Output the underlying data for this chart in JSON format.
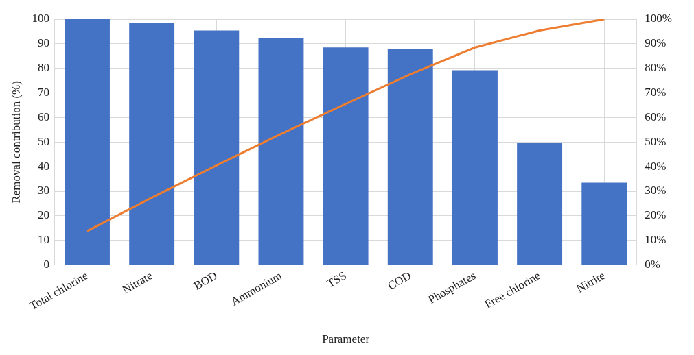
{
  "chart_data": {
    "type": "bar",
    "xlabel": "Parameter",
    "ylabel": "Removal contribution (%)",
    "categories": [
      "Total chlorine",
      "Nitrate",
      "BOD",
      "Ammonium",
      "TSS",
      "COD",
      "Phosphates",
      "Free chlorine",
      "Nitrite"
    ],
    "series": [
      {
        "color": "#4472c4",
        "values": [
          100,
          98.4,
          95.4,
          92.4,
          88.5,
          88,
          79.2,
          49.6,
          33.5
        ]
      },
      {
        "type": "line",
        "axis": "y2",
        "color": "#ed7d31",
        "marker": "none",
        "values": [
          13.8,
          27.4,
          40.5,
          53.3,
          65.5,
          77.6,
          88.5,
          95.4,
          100
        ]
      }
    ],
    "ylim": [
      0,
      100
    ],
    "yticks": [
      0,
      10,
      20,
      30,
      40,
      50,
      60,
      70,
      80,
      90,
      100
    ],
    "y2lim": [
      0,
      100
    ],
    "y2ticks": [
      {
        "value": 0,
        "label": "0%"
      },
      {
        "value": 10,
        "label": "10%"
      },
      {
        "value": 20,
        "label": "20%"
      },
      {
        "value": 30,
        "label": "30%"
      },
      {
        "value": 40,
        "label": "40%"
      },
      {
        "value": 50,
        "label": "50%"
      },
      {
        "value": 60,
        "label": "60%"
      },
      {
        "value": 70,
        "label": "70%"
      },
      {
        "value": 80,
        "label": "80%"
      },
      {
        "value": 90,
        "label": "90%"
      },
      {
        "value": 100,
        "label": "100%"
      }
    ],
    "grid": true,
    "legend": false
  }
}
